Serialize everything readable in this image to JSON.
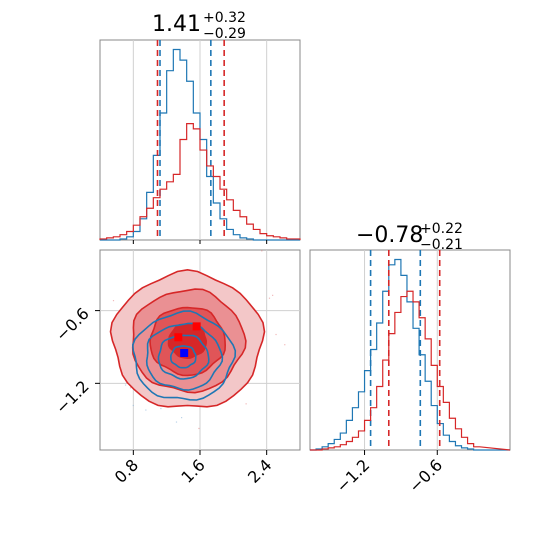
{
  "chart_data": [
    {
      "type": "histogram",
      "panel": "top-left marginal (parameter 1)",
      "title": {
        "main": "1.41",
        "sup": "+0.32",
        "sub": "−0.29"
      },
      "x_range": [
        0.4,
        2.8
      ],
      "x_ticks": [
        0.8,
        1.6,
        2.4
      ],
      "grid": true,
      "series": [
        {
          "color": "#1f77b4",
          "bins_x": [
            0.4,
            0.48,
            0.56,
            0.64,
            0.72,
            0.8,
            0.88,
            0.96,
            1.04,
            1.12,
            1.2,
            1.28,
            1.36,
            1.44,
            1.52,
            1.6,
            1.68,
            1.76,
            1.84,
            1.92,
            2.0,
            2.08,
            2.16,
            2.24,
            2.32,
            2.4,
            2.48,
            2.56,
            2.64,
            2.72
          ],
          "counts": [
            0,
            0,
            0,
            1,
            3,
            8,
            20,
            45,
            80,
            120,
            160,
            180,
            170,
            150,
            120,
            95,
            60,
            35,
            20,
            10,
            5,
            2,
            1,
            0,
            0,
            0,
            0,
            0,
            0,
            0
          ],
          "quantile_lines": [
            1.12,
            1.73
          ]
        },
        {
          "color": "#d62728",
          "bins_x": [
            0.4,
            0.48,
            0.56,
            0.64,
            0.72,
            0.8,
            0.88,
            0.96,
            1.04,
            1.12,
            1.2,
            1.28,
            1.36,
            1.44,
            1.52,
            1.6,
            1.68,
            1.76,
            1.84,
            1.92,
            2.0,
            2.08,
            2.16,
            2.24,
            2.32,
            2.4,
            2.48,
            2.56,
            2.64,
            2.72
          ],
          "counts": [
            1,
            2,
            3,
            5,
            8,
            14,
            22,
            30,
            40,
            48,
            55,
            62,
            95,
            110,
            105,
            85,
            70,
            60,
            48,
            38,
            28,
            22,
            15,
            10,
            6,
            4,
            3,
            2,
            1,
            1
          ],
          "quantile_lines": [
            1.09,
            1.89
          ]
        }
      ]
    },
    {
      "type": "contour",
      "panel": "bottom-left 2D joint",
      "x_range": [
        0.4,
        2.8
      ],
      "y_range": [
        -1.75,
        -0.1
      ],
      "x_ticks": [
        0.8,
        1.6,
        2.4
      ],
      "y_ticks": [
        -0.6,
        -1.2
      ],
      "grid": true,
      "series": [
        {
          "color": "#1f77b4",
          "center": [
            1.4,
            -0.98
          ],
          "sigma": [
            0.3,
            0.18
          ],
          "marker": [
            1.41,
            -0.95
          ]
        },
        {
          "color": "#d62728",
          "center": [
            1.45,
            -0.85
          ],
          "sigma": [
            0.45,
            0.28
          ],
          "markers": [
            [
              1.34,
              -0.82
            ],
            [
              1.56,
              -0.73
            ]
          ]
        }
      ]
    },
    {
      "type": "histogram",
      "panel": "bottom-right marginal (parameter 2)",
      "title": {
        "main": "−0.78",
        "sup": "+0.22",
        "sub": "−0.21"
      },
      "x_range": [
        -1.65,
        0.0
      ],
      "x_ticks": [
        -1.2,
        -0.6
      ],
      "grid": true,
      "series": [
        {
          "color": "#1f77b4",
          "bins_x": [
            -1.65,
            -1.6,
            -1.55,
            -1.5,
            -1.45,
            -1.4,
            -1.35,
            -1.3,
            -1.25,
            -1.2,
            -1.15,
            -1.1,
            -1.05,
            -1.0,
            -0.95,
            -0.9,
            -0.85,
            -0.8,
            -0.75,
            -0.7,
            -0.65,
            -0.6,
            -0.55,
            -0.5,
            -0.45,
            -0.4,
            -0.35,
            -0.3
          ],
          "counts": [
            0,
            1,
            3,
            6,
            10,
            16,
            28,
            40,
            55,
            75,
            95,
            120,
            150,
            175,
            180,
            165,
            140,
            115,
            90,
            65,
            42,
            25,
            14,
            8,
            4,
            2,
            1,
            0
          ],
          "quantile_lines": [
            -1.15,
            -0.74
          ]
        },
        {
          "color": "#d62728",
          "bins_x": [
            -1.65,
            -1.6,
            -1.55,
            -1.5,
            -1.45,
            -1.4,
            -1.35,
            -1.3,
            -1.25,
            -1.2,
            -1.15,
            -1.1,
            -1.05,
            -1.0,
            -0.95,
            -0.9,
            -0.85,
            -0.8,
            -0.75,
            -0.7,
            -0.65,
            -0.6,
            -0.55,
            -0.5,
            -0.45,
            -0.4,
            -0.35,
            -0.3
          ],
          "counts": [
            0,
            0,
            1,
            2,
            3,
            5,
            8,
            12,
            18,
            28,
            40,
            60,
            85,
            110,
            130,
            145,
            150,
            140,
            125,
            105,
            80,
            60,
            45,
            30,
            20,
            12,
            6,
            3
          ],
          "quantile_lines": [
            -1.0,
            -0.58
          ]
        }
      ]
    }
  ]
}
